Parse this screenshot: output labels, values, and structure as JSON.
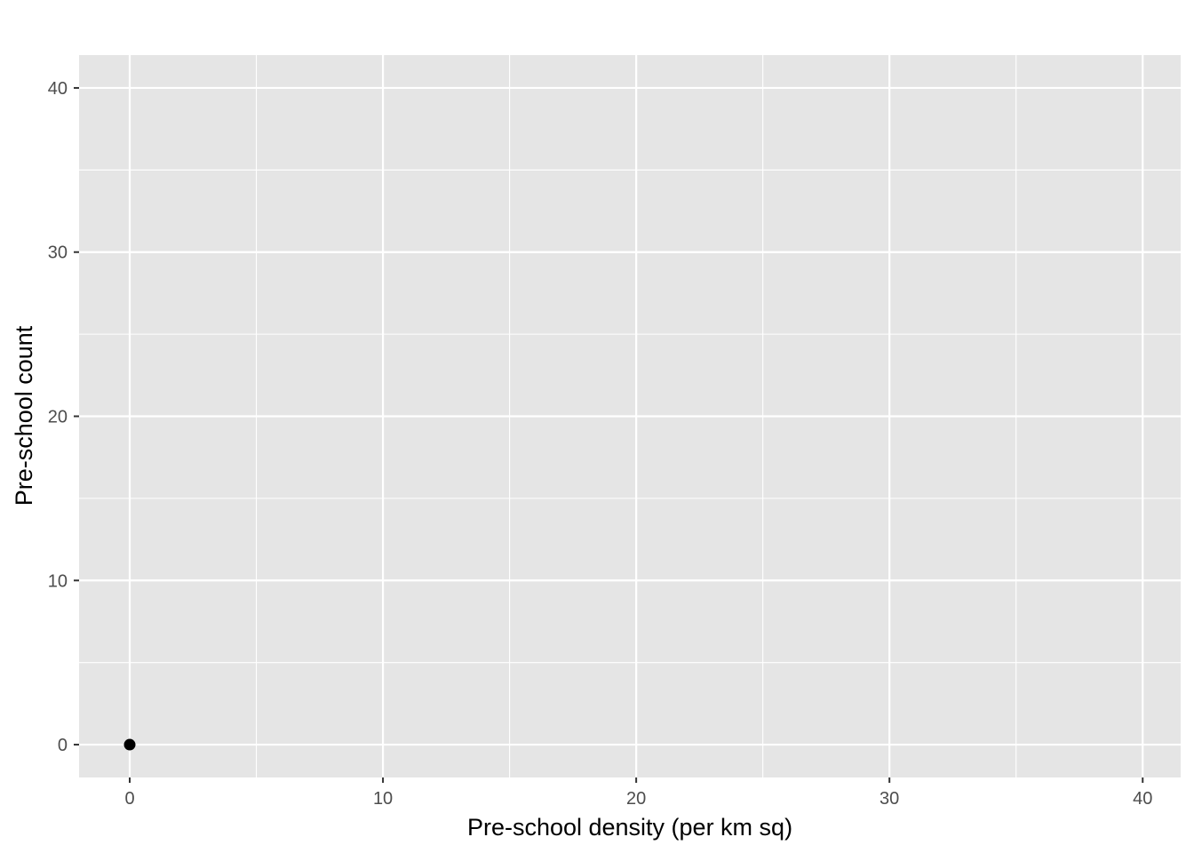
{
  "chart_data": {
    "type": "scatter",
    "title": "",
    "xlabel": "Pre-school density (per km sq)",
    "ylabel": "Pre-school count",
    "xlim": [
      -2,
      41.5
    ],
    "ylim": [
      -2,
      42
    ],
    "x_ticks": [
      0,
      10,
      20,
      30,
      40
    ],
    "y_ticks": [
      0,
      10,
      20,
      30,
      40
    ],
    "x_tick_labels": [
      "0",
      "10",
      "20",
      "30",
      "40"
    ],
    "y_tick_labels": [
      "0",
      "10",
      "20",
      "30",
      "40"
    ],
    "grid": true,
    "legend": "none",
    "points": [
      {
        "x": 0,
        "y": 0
      }
    ],
    "colors": {
      "panel_background": "#e5e5e5",
      "grid": "#ffffff",
      "point": "#000000",
      "tick": "#333333",
      "tick_label": "#4d4d4d"
    }
  }
}
